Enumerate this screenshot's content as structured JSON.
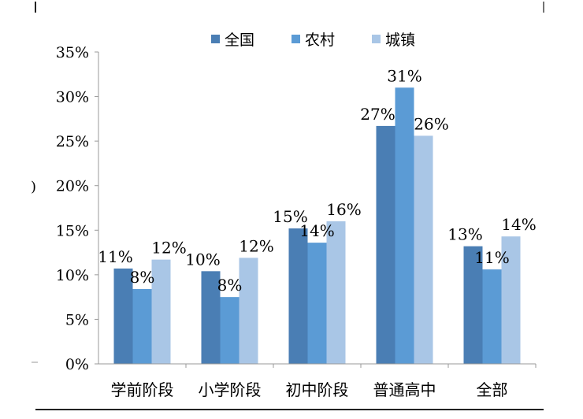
{
  "chart_data": {
    "type": "bar",
    "title": "",
    "xlabel": "",
    "ylabel": "",
    "ylim": [
      0,
      35
    ],
    "yticks": [
      "0%",
      "5%",
      "10%",
      "15%",
      "20%",
      "25%",
      "30%",
      "35%"
    ],
    "grid": false,
    "legend_position": "top",
    "categories": [
      "学前阶段",
      "小学阶段",
      "初中阶段",
      "普通高中",
      "全部"
    ],
    "series": [
      {
        "name": "全国",
        "color": "#4a7eb4",
        "values": [
          10.7,
          10.4,
          15.2,
          26.7,
          13.2
        ],
        "labels": [
          "11%",
          "10%",
          "15%",
          "27%",
          "13%"
        ]
      },
      {
        "name": "农村",
        "color": "#5b9bd5",
        "values": [
          8.4,
          7.5,
          13.6,
          31.0,
          10.6
        ],
        "labels": [
          "8%",
          "8%",
          "14%",
          "31%",
          "11%"
        ]
      },
      {
        "name": "城镇",
        "color": "#a9c6e6",
        "values": [
          11.7,
          11.9,
          16.0,
          25.6,
          14.3
        ],
        "labels": [
          "12%",
          "12%",
          "16%",
          "26%",
          "14%"
        ]
      }
    ],
    "edge_fragment": ")"
  }
}
